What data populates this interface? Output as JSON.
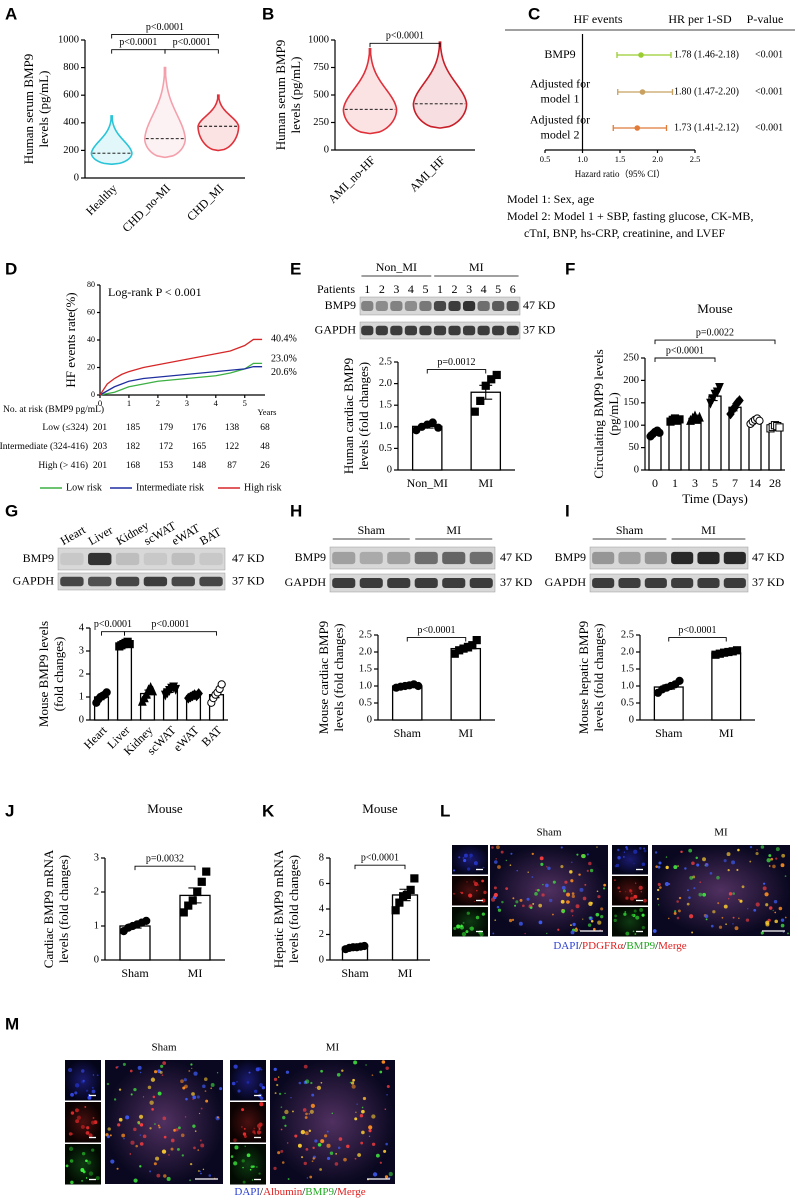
{
  "panel_labels": [
    "A",
    "B",
    "C",
    "D",
    "E",
    "F",
    "G",
    "H",
    "I",
    "J",
    "K",
    "L",
    "M"
  ],
  "chart_data": [
    {
      "type": "violin",
      "ylabel": [
        "Human serum BMP9",
        "levels (pg/mL)"
      ],
      "categories": [
        "Healthy",
        "CHD_no-MI",
        "CHD_MI"
      ],
      "values": [
        180,
        285,
        375
      ],
      "mins": [
        100,
        150,
        200
      ],
      "maxs": [
        450,
        800,
        600
      ],
      "colors": [
        "#29c4d8",
        "#f4a0ac",
        "#e0303a"
      ],
      "ylim": [
        0,
        1000
      ],
      "yticks": [
        0,
        200,
        400,
        600,
        800,
        1000
      ],
      "annotations": [
        "p<0.0001",
        "p<0.0001",
        "p<0.0001"
      ]
    },
    {
      "type": "violin",
      "ylabel": [
        "Human serum BMP9",
        "levels (pg/mL)"
      ],
      "categories": [
        "AMI_no-HF",
        "AMI_HF"
      ],
      "values": [
        370,
        420
      ],
      "mins": [
        150,
        200
      ],
      "maxs": [
        920,
        980
      ],
      "colors": [
        "#e0303a",
        "#c81e28"
      ],
      "ylim": [
        0,
        1000
      ],
      "yticks": [
        0,
        250,
        500,
        750,
        1000
      ],
      "annotations": [
        "p<0.0001"
      ]
    },
    {
      "type": "forest",
      "headers": [
        "HF events",
        "HR per 1-SD",
        "P-value"
      ],
      "categories": [
        [
          "BMP9"
        ],
        [
          "Adjusted for",
          "model 1"
        ],
        [
          "Adjusted for",
          "model 2"
        ]
      ],
      "values": [
        1.78,
        1.8,
        1.73
      ],
      "lows": [
        1.46,
        1.47,
        1.41
      ],
      "highs": [
        2.18,
        2.2,
        2.12
      ],
      "value_labels": [
        "1.78 (1.46-2.18)",
        "1.80 (1.47-2.20)",
        "1.73 (1.41-2.12)"
      ],
      "pvalues": [
        "<0.001",
        "<0.001",
        "<0.001"
      ],
      "colors": [
        "#9acd32",
        "#c8a060",
        "#e07b39"
      ],
      "reference_line": 1,
      "xlim": [
        0.5,
        2.5
      ],
      "xticks": [
        0.5,
        {
          "value": 1,
          "label": "1.0"
        },
        1.5,
        {
          "value": 2,
          "label": "2.0"
        },
        2.5
      ],
      "xlabel": "Hazard ratio（95% CI）",
      "notes": [
        "Model 1: Sex, age",
        "Model 2: Model 1 + SBP, fasting glucose, CK-MB,",
        "cTnI, BNP, hs-CRP, creatinine, and LVEF"
      ]
    },
    {
      "type": "line",
      "ylabel": [
        "HF events rate(%)"
      ],
      "xlabel": "Years",
      "annotation": "Log-rank P < 0.001",
      "x": [
        0,
        0.25,
        0.5,
        0.75,
        1,
        1.5,
        2,
        2.5,
        3,
        3.5,
        4,
        4.5,
        5,
        5.3,
        5.6
      ],
      "series": [
        {
          "name": "Low risk",
          "color": "#3cb043",
          "end_label": "23.0%",
          "values": [
            0,
            1,
            2,
            4,
            6,
            8,
            10,
            11,
            12,
            13,
            14,
            16,
            19,
            23.0,
            23.0
          ]
        },
        {
          "name": "Intermediate risk",
          "color": "#1f2fa0",
          "end_label": "20.6%",
          "values": [
            0,
            3,
            6,
            8,
            10,
            12,
            13,
            14,
            15,
            16,
            17,
            18,
            19,
            20.6,
            20.6
          ]
        },
        {
          "name": "High risk",
          "color": "#d62728",
          "end_label": "40.4%",
          "values": [
            0,
            8,
            12,
            15,
            17,
            20,
            22,
            24,
            26,
            28,
            30,
            32,
            36,
            40.4,
            40.4
          ]
        }
      ],
      "xlim": [
        0,
        5.7
      ],
      "xticks": [
        0,
        1,
        2,
        3,
        4,
        5
      ],
      "ylim": [
        0,
        80
      ],
      "yticks": [
        0,
        20,
        40,
        60,
        80
      ],
      "risk_table": {
        "title": "No. at risk (BMP9 pg/mL)",
        "rows": [
          {
            "label": "Low (≤324)",
            "counts": [
              201,
              185,
              179,
              176,
              138,
              68
            ]
          },
          {
            "label": "Intermediate (324-416)",
            "counts": [
              203,
              182,
              172,
              165,
              122,
              48
            ]
          },
          {
            "label": "High (> 416)",
            "counts": [
              201,
              168,
              153,
              148,
              87,
              26
            ]
          }
        ]
      }
    },
    {
      "type": "bar",
      "ylabel": [
        "Human cardiac BMP9",
        "levels (fold changes)"
      ],
      "categories": [
        "Non_MI",
        "MI"
      ],
      "values": [
        1.01,
        1.8
      ],
      "errors": [
        0.04,
        0.16
      ],
      "points": [
        [
          0.92,
          1.0,
          1.05,
          1.1,
          0.98
        ],
        [
          1.35,
          1.6,
          1.95,
          2.1,
          2.2
        ]
      ],
      "ylim": [
        0,
        2.5
      ],
      "yticks": [
        0,
        0.5,
        {
          "value": 1,
          "label": "1.0"
        },
        1.5,
        {
          "value": 2,
          "label": "2.0"
        },
        2.5
      ],
      "annotations": [
        "p=0.0012"
      ]
    },
    {
      "type": "bar",
      "title": "Mouse",
      "xlabel": "Time (Days)",
      "ylabel": [
        "Circulating BMP9 levels",
        "(pg/mL)"
      ],
      "categories": [
        "0",
        "1",
        "3",
        "5",
        "7",
        "14",
        "28"
      ],
      "values": [
        83,
        112,
        115,
        165,
        140,
        110,
        97
      ],
      "errors": [
        5,
        4,
        5,
        10,
        8,
        4,
        3
      ],
      "points": [
        [
          75,
          80,
          85,
          88,
          83
        ],
        [
          108,
          112,
          115,
          110,
          113
        ],
        [
          110,
          115,
          120,
          112,
          117
        ],
        [
          150,
          160,
          170,
          175,
          185
        ],
        [
          125,
          135,
          140,
          150,
          155
        ],
        [
          103,
          108,
          112,
          115,
          110
        ],
        [
          93,
          96,
          100,
          98,
          95
        ]
      ],
      "ylim": [
        0,
        250
      ],
      "yticks": [
        0,
        50,
        100,
        150,
        200,
        250
      ],
      "annotations": [
        "p<0.0001",
        "p=0.0022"
      ]
    },
    {
      "type": "bar",
      "ylabel": [
        "Mouse BMP9 levels",
        "(fold changes)"
      ],
      "categories": [
        "Heart",
        "Liver",
        "Kidney",
        "scWAT",
        "eWAT",
        "BAT"
      ],
      "values": [
        1.0,
        3.3,
        1.15,
        1.3,
        1.05,
        1.1
      ],
      "errors": [
        0.12,
        0.05,
        0.15,
        0.1,
        0.07,
        0.13
      ],
      "points": [
        [
          0.75,
          0.9,
          1.0,
          1.05,
          1.1,
          1.2
        ],
        [
          3.2,
          3.25,
          3.3,
          3.35,
          3.4,
          3.3
        ],
        [
          0.8,
          0.95,
          1.1,
          1.3,
          1.4,
          1.25
        ],
        [
          1.1,
          1.2,
          1.3,
          1.4,
          1.45,
          1.35
        ],
        [
          0.95,
          1.0,
          1.05,
          1.1,
          1.05,
          1.15
        ],
        [
          0.75,
          0.95,
          1.1,
          1.2,
          1.35,
          1.55
        ]
      ],
      "ylim": [
        0,
        4
      ],
      "yticks": [
        0,
        1,
        2,
        3,
        4
      ],
      "annotations": [
        "p<0.0001",
        "p<0.0001"
      ]
    },
    {
      "type": "bar",
      "ylabel": [
        "Mouse cardiac BMP9",
        "levels (fold changes)"
      ],
      "categories": [
        "Sham",
        "MI"
      ],
      "values": [
        1.0,
        2.1
      ],
      "errors": [
        0.04,
        0.07
      ],
      "points": [
        [
          0.95,
          0.98,
          1.0,
          1.02,
          1.05,
          1.0
        ],
        [
          1.95,
          2.05,
          2.1,
          2.15,
          2.2,
          2.35
        ]
      ],
      "ylim": [
        0,
        2.5
      ],
      "yticks": [
        0,
        0.5,
        {
          "value": 1,
          "label": "1.0"
        },
        1.5,
        {
          "value": 2,
          "label": "2.0"
        },
        2.5
      ],
      "annotations": [
        "p<0.0001"
      ]
    },
    {
      "type": "bar",
      "ylabel": [
        "Mouse hepatic BMP9",
        "levels (fold changes)"
      ],
      "categories": [
        "Sham",
        "MI"
      ],
      "values": [
        0.97,
        1.97
      ],
      "errors": [
        0.06,
        0.05
      ],
      "points": [
        [
          0.8,
          0.9,
          0.95,
          1.0,
          1.05,
          1.15
        ],
        [
          1.92,
          1.95,
          1.98,
          2.0,
          2.02,
          2.05
        ]
      ],
      "ylim": [
        0,
        2.5
      ],
      "yticks": [
        0,
        0.5,
        {
          "value": 1,
          "label": "1.0"
        },
        1.5,
        {
          "value": 2,
          "label": "2.0"
        },
        2.5
      ],
      "annotations": [
        "p<0.0001"
      ]
    },
    {
      "type": "bar",
      "title": "Mouse",
      "ylabel": [
        "Cardiac BMP9 mRNA",
        "levels (fold changes)"
      ],
      "categories": [
        "Sham",
        "MI"
      ],
      "values": [
        1.0,
        1.9
      ],
      "errors": [
        0.06,
        0.22
      ],
      "points": [
        [
          0.85,
          0.95,
          1.0,
          1.05,
          1.1,
          1.15
        ],
        [
          1.4,
          1.6,
          1.75,
          2.0,
          2.3,
          2.6
        ]
      ],
      "ylim": [
        0,
        3
      ],
      "yticks": [
        0,
        1,
        2,
        3
      ],
      "annotations": [
        "p=0.0032"
      ]
    },
    {
      "type": "bar",
      "title": "Mouse",
      "ylabel": [
        "Hepatic BMP9 mRNA",
        "levels (fold changes)"
      ],
      "categories": [
        "Sham",
        "MI"
      ],
      "values": [
        1.0,
        5.1
      ],
      "errors": [
        0.04,
        0.45
      ],
      "points": [
        [
          0.85,
          0.95,
          1.0,
          1.0,
          1.05,
          1.1
        ],
        [
          3.9,
          4.5,
          5.0,
          5.1,
          5.5,
          6.4
        ]
      ],
      "ylim": [
        0,
        8
      ],
      "yticks": [
        0,
        2,
        4,
        6,
        8
      ],
      "annotations": [
        "p<0.0001"
      ]
    }
  ],
  "blots": [
    {
      "groups": [
        "Non_MI",
        "MI"
      ],
      "lanes_title": "Patients",
      "lanes": [
        "1",
        "2",
        "3",
        "4",
        "5",
        "1",
        "2",
        "3",
        "4",
        "5",
        "6"
      ],
      "rows": [
        "BMP9",
        "GAPDH"
      ],
      "sizes": [
        "47 KD",
        "37 KD"
      ]
    },
    {
      "lanes": [
        "Heart",
        "Liver",
        "Kidney",
        "scWAT",
        "eWAT",
        "BAT"
      ],
      "rows": [
        "BMP9",
        "GAPDH"
      ],
      "sizes": [
        "47 KD",
        "37 KD"
      ]
    },
    {
      "groups": [
        "Sham",
        "MI"
      ],
      "rows": [
        "BMP9",
        "GAPDH"
      ],
      "sizes": [
        "47 KD",
        "37 KD"
      ]
    },
    {
      "groups": [
        "Sham",
        "MI"
      ],
      "rows": [
        "BMP9",
        "GAPDH"
      ],
      "sizes": [
        "47 KD",
        "37 KD"
      ]
    }
  ],
  "images": [
    {
      "columns": [
        "Sham",
        "MI"
      ],
      "separator": "/",
      "legend": [
        {
          "text": "DAPI",
          "color": "#2a3fcf"
        },
        {
          "text": "PDGFRα",
          "color": "#e02020"
        },
        {
          "text": "BMP9",
          "color": "#22aa22"
        },
        {
          "text": "Merge",
          "color": "#e02020"
        }
      ]
    },
    {
      "columns": [
        "Sham",
        "MI"
      ],
      "separator": "/",
      "legend": [
        {
          "text": "DAPI",
          "color": "#2a3fcf"
        },
        {
          "text": "Albumin",
          "color": "#e02020"
        },
        {
          "text": "BMP9",
          "color": "#22aa22"
        },
        {
          "text": "Merge",
          "color": "#e02020"
        }
      ]
    }
  ]
}
